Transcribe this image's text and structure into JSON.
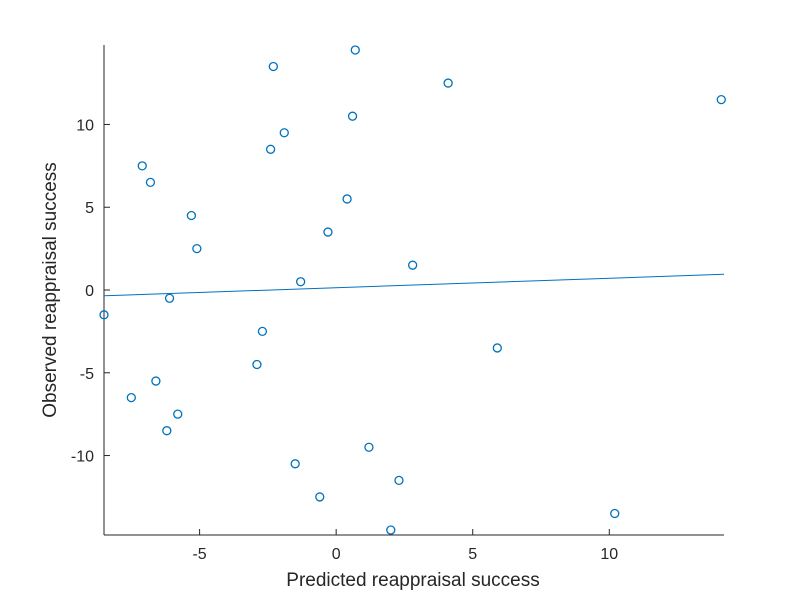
{
  "chart_data": {
    "type": "scatter",
    "xlabel": "Predicted reappraisal success",
    "ylabel": "Observed reappraisal success",
    "xlim": [
      -8.5,
      14.2
    ],
    "ylim": [
      -14.8,
      14.8
    ],
    "xticks": [
      -5,
      0,
      5,
      10
    ],
    "yticks": [
      -10,
      -5,
      0,
      5,
      10
    ],
    "grid": false,
    "marker_color": "#0072BD",
    "fit_line_color": "#0072BD",
    "points": [
      {
        "x": 0.7,
        "y": 14.5
      },
      {
        "x": -2.3,
        "y": 13.5
      },
      {
        "x": 4.1,
        "y": 12.5
      },
      {
        "x": 14.1,
        "y": 11.5
      },
      {
        "x": 0.6,
        "y": 10.5
      },
      {
        "x": -1.9,
        "y": 9.5
      },
      {
        "x": -2.4,
        "y": 8.5
      },
      {
        "x": -7.1,
        "y": 7.5
      },
      {
        "x": -6.8,
        "y": 6.5
      },
      {
        "x": 0.4,
        "y": 5.5
      },
      {
        "x": -5.3,
        "y": 4.5
      },
      {
        "x": -0.3,
        "y": 3.5
      },
      {
        "x": -5.1,
        "y": 2.5
      },
      {
        "x": 2.8,
        "y": 1.5
      },
      {
        "x": -1.3,
        "y": 0.5
      },
      {
        "x": -6.1,
        "y": -0.5
      },
      {
        "x": -8.5,
        "y": -1.5
      },
      {
        "x": -2.7,
        "y": -2.5
      },
      {
        "x": 5.9,
        "y": -3.5
      },
      {
        "x": -2.9,
        "y": -4.5
      },
      {
        "x": -6.6,
        "y": -5.5
      },
      {
        "x": -7.5,
        "y": -6.5
      },
      {
        "x": -5.8,
        "y": -7.5
      },
      {
        "x": -6.2,
        "y": -8.5
      },
      {
        "x": 1.2,
        "y": -9.5
      },
      {
        "x": -1.5,
        "y": -10.5
      },
      {
        "x": 2.3,
        "y": -11.5
      },
      {
        "x": -0.6,
        "y": -12.5
      },
      {
        "x": 10.2,
        "y": -13.5
      },
      {
        "x": 2.0,
        "y": -14.5
      }
    ],
    "fit_line": {
      "x": [
        -8.5,
        14.2
      ],
      "y": [
        -0.35,
        0.95
      ]
    }
  }
}
